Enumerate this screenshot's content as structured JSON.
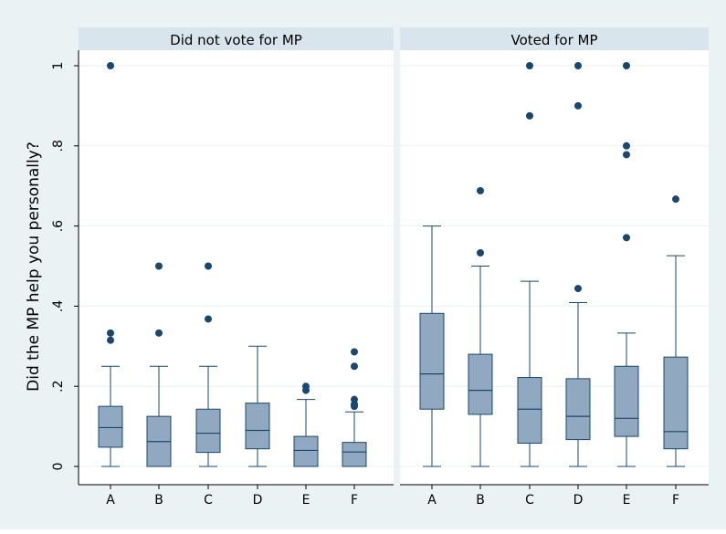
{
  "chart_data": {
    "type": "box",
    "ylabel": "Did the MP help you personally?",
    "y_ticks": [
      {
        "value": 0,
        "label": "0"
      },
      {
        "value": 0.2,
        "label": ".2"
      },
      {
        "value": 0.4,
        "label": ".4"
      },
      {
        "value": 0.6,
        "label": ".6"
      },
      {
        "value": 0.8,
        "label": ".8"
      },
      {
        "value": 1,
        "label": "1"
      }
    ],
    "ylim": [
      0,
      1
    ],
    "grid": true,
    "categories": [
      "A",
      "B",
      "C",
      "D",
      "E",
      "F"
    ],
    "colors": {
      "box_fill": "#90a8c0",
      "box_stroke": "#1a476f",
      "outlier": "#1a476f",
      "strip_fill": "#d9e5ec",
      "frame_bg": "#eaf2f3",
      "plot_bg": "#ffffff",
      "grid": "#eaf2f3"
    },
    "panels": [
      {
        "title": "Did not vote for MP",
        "boxes": [
          {
            "category": "A",
            "whisker_low": 0,
            "q1": 0.048,
            "median": 0.097,
            "q3": 0.15,
            "whisker_high": 0.25,
            "outliers": [
              0.315,
              0.333,
              1.0
            ]
          },
          {
            "category": "B",
            "whisker_low": 0,
            "q1": 0,
            "median": 0.062,
            "q3": 0.125,
            "whisker_high": 0.25,
            "outliers": [
              0.333,
              0.5
            ]
          },
          {
            "category": "C",
            "whisker_low": 0,
            "q1": 0.035,
            "median": 0.083,
            "q3": 0.143,
            "whisker_high": 0.25,
            "outliers": [
              0.368,
              0.5
            ]
          },
          {
            "category": "D",
            "whisker_low": 0,
            "q1": 0.044,
            "median": 0.09,
            "q3": 0.158,
            "whisker_high": 0.3,
            "outliers": []
          },
          {
            "category": "E",
            "whisker_low": 0,
            "q1": 0,
            "median": 0.04,
            "q3": 0.075,
            "whisker_high": 0.167,
            "outliers": [
              0.19,
              0.2
            ]
          },
          {
            "category": "F",
            "whisker_low": 0,
            "q1": 0,
            "median": 0.036,
            "q3": 0.06,
            "whisker_high": 0.136,
            "outliers": [
              0.15,
              0.155,
              0.167,
              0.25,
              0.286
            ]
          }
        ]
      },
      {
        "title": "Voted for MP",
        "boxes": [
          {
            "category": "A",
            "whisker_low": 0,
            "q1": 0.143,
            "median": 0.231,
            "q3": 0.382,
            "whisker_high": 0.6,
            "outliers": []
          },
          {
            "category": "B",
            "whisker_low": 0,
            "q1": 0.13,
            "median": 0.19,
            "q3": 0.28,
            "whisker_high": 0.5,
            "outliers": [
              0.533,
              0.688
            ]
          },
          {
            "category": "C",
            "whisker_low": 0,
            "q1": 0.058,
            "median": 0.143,
            "q3": 0.222,
            "whisker_high": 0.462,
            "outliers": [
              0.875,
              1.0
            ]
          },
          {
            "category": "D",
            "whisker_low": 0,
            "q1": 0.067,
            "median": 0.125,
            "q3": 0.219,
            "whisker_high": 0.409,
            "outliers": [
              0.444,
              0.9,
              1.0
            ]
          },
          {
            "category": "E",
            "whisker_low": 0,
            "q1": 0.075,
            "median": 0.12,
            "q3": 0.25,
            "whisker_high": 0.333,
            "outliers": [
              0.571,
              0.778,
              0.8,
              1.0
            ]
          },
          {
            "category": "F",
            "whisker_low": 0,
            "q1": 0.044,
            "median": 0.087,
            "q3": 0.273,
            "whisker_high": 0.526,
            "outliers": [
              0.667
            ]
          }
        ]
      }
    ]
  }
}
